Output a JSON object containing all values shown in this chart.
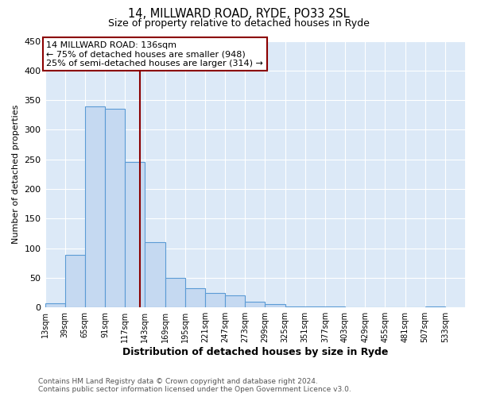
{
  "title": "14, MILLWARD ROAD, RYDE, PO33 2SL",
  "subtitle": "Size of property relative to detached houses in Ryde",
  "xlabel": "Distribution of detached houses by size in Ryde",
  "ylabel": "Number of detached properties",
  "bar_left_edges": [
    13,
    39,
    65,
    91,
    117,
    143,
    169,
    195,
    221,
    247,
    273,
    299,
    325,
    351,
    377,
    403,
    429,
    455,
    481,
    507
  ],
  "bar_heights": [
    7,
    89,
    340,
    335,
    245,
    110,
    50,
    33,
    25,
    21,
    10,
    5,
    1,
    1,
    1,
    0,
    0,
    0,
    0,
    1
  ],
  "bin_width": 26,
  "bar_fill_color": "#c5d9f1",
  "bar_edge_color": "#5b9bd5",
  "property_value": 136,
  "vline_color": "#8b0000",
  "annotation_text": "14 MILLWARD ROAD: 136sqm\n← 75% of detached houses are smaller (948)\n25% of semi-detached houses are larger (314) →",
  "annotation_box_edge_color": "#8b0000",
  "annotation_box_fill": "white",
  "ylim": [
    0,
    450
  ],
  "tick_labels": [
    "13sqm",
    "39sqm",
    "65sqm",
    "91sqm",
    "117sqm",
    "143sqm",
    "169sqm",
    "195sqm",
    "221sqm",
    "247sqm",
    "273sqm",
    "299sqm",
    "325sqm",
    "351sqm",
    "377sqm",
    "403sqm",
    "429sqm",
    "455sqm",
    "481sqm",
    "507sqm",
    "533sqm"
  ],
  "tick_positions": [
    13,
    39,
    65,
    91,
    117,
    143,
    169,
    195,
    221,
    247,
    273,
    299,
    325,
    351,
    377,
    403,
    429,
    455,
    481,
    507,
    533
  ],
  "footnote1": "Contains HM Land Registry data © Crown copyright and database right 2024.",
  "footnote2": "Contains public sector information licensed under the Open Government Licence v3.0.",
  "figure_bg_color": "#ffffff",
  "plot_bg_color": "#dce9f7"
}
